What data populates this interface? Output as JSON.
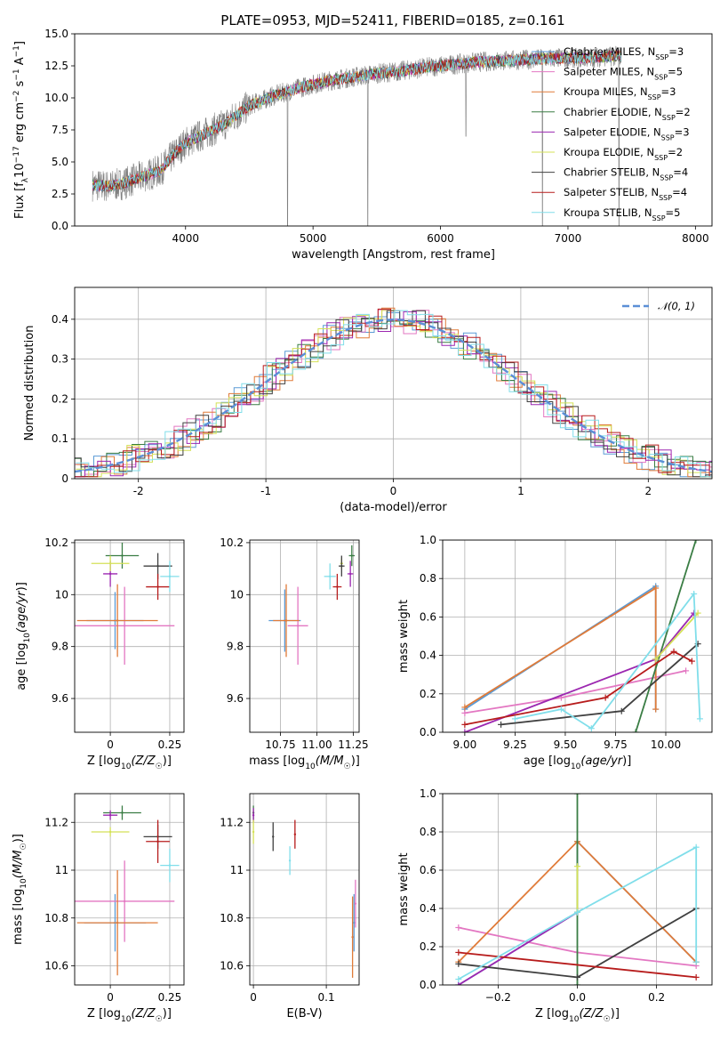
{
  "title": "PLATE=0953, MJD=52411, FIBERID=0185, z=0.161",
  "chart_data": [
    {
      "id": "spectrum",
      "type": "line",
      "xlabel": "wavelength [Angstrom, rest frame]",
      "ylabel": "Flux [f_λ10^{-17} erg cm^{-2} s^{-1} A^{-1}]",
      "xlim": [
        3130,
        8130
      ],
      "ylim": [
        0,
        15
      ],
      "xticks": [
        "4000",
        "5000",
        "6000",
        "7000",
        "8000"
      ],
      "yticks": [
        "0.0",
        "2.5",
        "5.0",
        "7.5",
        "10.0",
        "12.5",
        "15.0"
      ],
      "observed": {
        "color": "#808080",
        "anchors": [
          [
            3270,
            3.2
          ],
          [
            3400,
            3.1
          ],
          [
            3500,
            3.3
          ],
          [
            3650,
            3.8
          ],
          [
            3800,
            4.3
          ],
          [
            3900,
            5.5
          ],
          [
            4000,
            6.5
          ],
          [
            4150,
            7.2
          ],
          [
            4300,
            7.9
          ],
          [
            4500,
            9.4
          ],
          [
            4700,
            10.2
          ],
          [
            4900,
            10.8
          ],
          [
            5100,
            11.3
          ],
          [
            5300,
            11.6
          ],
          [
            5500,
            11.9
          ],
          [
            5700,
            12.1
          ],
          [
            5900,
            12.4
          ],
          [
            6100,
            12.6
          ],
          [
            6300,
            12.8
          ],
          [
            6500,
            12.9
          ],
          [
            6700,
            13.0
          ],
          [
            6900,
            13.1
          ],
          [
            7100,
            13.1
          ],
          [
            7300,
            13.2
          ],
          [
            7420,
            13.3
          ]
        ],
        "deep_lines": [
          [
            4800,
            0.0
          ],
          [
            5430,
            0.0
          ],
          [
            6200,
            7.0
          ],
          [
            6800,
            0.0
          ],
          [
            7400,
            0.0
          ]
        ],
        "start": 3270,
        "end": 7420
      },
      "legend": [
        {
          "label": "Chabrier MILES, N_{SSP}=3",
          "color": "#5b9bd5"
        },
        {
          "label": "Salpeter MILES, N_{SSP}=5",
          "color": "#e377c2"
        },
        {
          "label": "Kroupa MILES, N_{SSP}=3",
          "color": "#e07b39"
        },
        {
          "label": "Chabrier ELODIE, N_{SSP}=2",
          "color": "#3a7d44"
        },
        {
          "label": "Salpeter ELODIE, N_{SSP}=3",
          "color": "#9c27b0"
        },
        {
          "label": "Kroupa ELODIE, N_{SSP}=2",
          "color": "#d4e157"
        },
        {
          "label": "Chabrier STELIB, N_{SSP}=4",
          "color": "#404040"
        },
        {
          "label": "Salpeter STELIB, N_{SSP}=4",
          "color": "#b71c1c"
        },
        {
          "label": "Kroupa STELIB, N_{SSP}=5",
          "color": "#80deea"
        }
      ]
    },
    {
      "id": "residuals",
      "type": "line",
      "xlabel": "(data-model)/error",
      "ylabel": "Normed distribution",
      "xlim": [
        -2.5,
        2.5
      ],
      "ylim": [
        0,
        0.48
      ],
      "xticks": [
        -2,
        -1,
        0,
        1,
        2
      ],
      "yticks": [
        0.0,
        0.1,
        0.2,
        0.3,
        0.4
      ],
      "gaussian": {
        "label": "𝒩(0, 1)",
        "color": "#5b8fd6"
      },
      "bin_width": 0.1,
      "hist_colors": [
        "#5b9bd5",
        "#e377c2",
        "#e07b39",
        "#3a7d44",
        "#9c27b0",
        "#d4e157",
        "#404040",
        "#b71c1c",
        "#80deea"
      ]
    },
    {
      "id": "age_vs_Z",
      "type": "scatter",
      "xlabel": "Z [log10(Z/Z☉)]",
      "ylabel": "age  [log10(age/yr)]",
      "xlim": [
        -0.15,
        0.31
      ],
      "ylim": [
        9.47,
        10.21
      ],
      "xticks": [
        0.0,
        0.25
      ],
      "yticks": [
        9.6,
        9.8,
        10.0,
        10.2
      ],
      "points": [
        {
          "color": "#5b9bd5",
          "x": 0.02,
          "y": 9.9,
          "xerr": 0.12,
          "yerr": 0.11
        },
        {
          "color": "#e377c2",
          "x": 0.06,
          "y": 9.88,
          "xerr": 0.21,
          "yerr": 0.15
        },
        {
          "color": "#e07b39",
          "x": 0.03,
          "y": 9.9,
          "xerr": 0.17,
          "yerr": 0.14
        },
        {
          "color": "#3a7d44",
          "x": 0.05,
          "y": 10.15,
          "xerr": 0.07,
          "yerr": 0.05
        },
        {
          "color": "#9c27b0",
          "x": 0.0,
          "y": 10.08,
          "xerr": 0.03,
          "yerr": 0.05
        },
        {
          "color": "#d4e157",
          "x": 0.0,
          "y": 10.12,
          "xerr": 0.08,
          "yerr": 0.03
        },
        {
          "color": "#404040",
          "x": 0.2,
          "y": 10.11,
          "xerr": 0.06,
          "yerr": 0.05
        },
        {
          "color": "#b71c1c",
          "x": 0.2,
          "y": 10.03,
          "xerr": 0.05,
          "yerr": 0.05
        },
        {
          "color": "#80deea",
          "x": 0.25,
          "y": 10.07,
          "xerr": 0.04,
          "yerr": 0.06
        }
      ]
    },
    {
      "id": "age_vs_mass",
      "type": "scatter",
      "xlabel": "mass [log10(M/M☉)]",
      "ylabel": "",
      "xlim": [
        10.54,
        11.29
      ],
      "ylim": [
        9.47,
        10.21
      ],
      "xticks": [
        "10.75",
        "11.00",
        "11.25"
      ],
      "yticks": [
        9.6,
        9.8,
        10.0,
        10.2
      ],
      "points": [
        {
          "color": "#5b9bd5",
          "x": 10.78,
          "y": 9.9,
          "xerr": 0.11,
          "yerr": 0.12
        },
        {
          "color": "#e377c2",
          "x": 10.87,
          "y": 9.88,
          "xerr": 0.07,
          "yerr": 0.15
        },
        {
          "color": "#e07b39",
          "x": 10.79,
          "y": 9.9,
          "xerr": 0.09,
          "yerr": 0.14
        },
        {
          "color": "#3a7d44",
          "x": 11.24,
          "y": 10.15,
          "xerr": 0.02,
          "yerr": 0.04
        },
        {
          "color": "#9c27b0",
          "x": 11.23,
          "y": 10.08,
          "xerr": 0.02,
          "yerr": 0.05
        },
        {
          "color": "#d4e157",
          "x": 11.17,
          "y": 10.12,
          "xerr": 0.01,
          "yerr": 0.02
        },
        {
          "color": "#404040",
          "x": 11.17,
          "y": 10.11,
          "xerr": 0.02,
          "yerr": 0.04
        },
        {
          "color": "#b71c1c",
          "x": 11.14,
          "y": 10.03,
          "xerr": 0.03,
          "yerr": 0.05
        },
        {
          "color": "#80deea",
          "x": 11.09,
          "y": 10.07,
          "xerr": 0.04,
          "yerr": 0.05
        }
      ]
    },
    {
      "id": "weight_vs_age",
      "type": "line",
      "xlabel": "age  [log10(age/yr)]",
      "ylabel": "mass weight",
      "xlim": [
        8.89,
        10.23
      ],
      "ylim": [
        0,
        1.0
      ],
      "xticks": [
        "9.00",
        "9.25",
        "9.50",
        "9.75",
        "10.00"
      ],
      "yticks": [
        "0.0",
        "0.2",
        "0.4",
        "0.6",
        "0.8",
        "1.0"
      ],
      "series": [
        {
          "color": "#5b9bd5",
          "points": [
            [
              9.0,
              0.12
            ],
            [
              9.95,
              0.76
            ],
            [
              9.95,
              0.12
            ]
          ]
        },
        {
          "color": "#e377c2",
          "points": [
            [
              9.0,
              0.1
            ],
            [
              9.48,
              0.18
            ],
            [
              10.1,
              0.32
            ]
          ]
        },
        {
          "color": "#e07b39",
          "points": [
            [
              9.0,
              0.13
            ],
            [
              9.95,
              0.75
            ],
            [
              9.95,
              0.12
            ]
          ]
        },
        {
          "color": "#3a7d44",
          "points": [
            [
              9.85,
              0.0
            ],
            [
              10.15,
              1.0
            ]
          ]
        },
        {
          "color": "#9c27b0",
          "points": [
            [
              9.0,
              0.0
            ],
            [
              9.95,
              0.38
            ],
            [
              10.14,
              0.62
            ]
          ]
        },
        {
          "color": "#d4e157",
          "points": [
            [
              9.95,
              0.38
            ],
            [
              10.16,
              0.62
            ]
          ]
        },
        {
          "color": "#404040",
          "points": [
            [
              9.18,
              0.04
            ],
            [
              9.78,
              0.11
            ],
            [
              10.16,
              0.46
            ]
          ]
        },
        {
          "color": "#b71c1c",
          "points": [
            [
              9.0,
              0.04
            ],
            [
              9.7,
              0.18
            ],
            [
              10.04,
              0.42
            ],
            [
              10.13,
              0.37
            ]
          ]
        },
        {
          "color": "#80deea",
          "points": [
            [
              9.25,
              0.07
            ],
            [
              9.48,
              0.12
            ],
            [
              9.63,
              0.02
            ],
            [
              10.14,
              0.72
            ],
            [
              10.17,
              0.07
            ]
          ]
        }
      ]
    },
    {
      "id": "mass_vs_Z",
      "type": "scatter",
      "xlabel": "Z [log10(Z/Z☉)]",
      "ylabel": "mass [log10(M/M☉)]",
      "xlim": [
        -0.15,
        0.31
      ],
      "ylim": [
        10.52,
        11.32
      ],
      "xticks": [
        0.0,
        0.25
      ],
      "yticks": [
        10.6,
        10.8,
        11.0,
        11.2
      ],
      "points": [
        {
          "color": "#5b9bd5",
          "x": 0.02,
          "y": 10.78,
          "xerr": 0.13,
          "yerr": 0.12
        },
        {
          "color": "#e377c2",
          "x": 0.06,
          "y": 10.87,
          "xerr": 0.21,
          "yerr": 0.17
        },
        {
          "color": "#e07b39",
          "x": 0.03,
          "y": 10.78,
          "xerr": 0.17,
          "yerr": 0.22
        },
        {
          "color": "#3a7d44",
          "x": 0.05,
          "y": 11.24,
          "xerr": 0.08,
          "yerr": 0.03
        },
        {
          "color": "#9c27b0",
          "x": 0.0,
          "y": 11.23,
          "xerr": 0.03,
          "yerr": 0.02
        },
        {
          "color": "#d4e157",
          "x": 0.0,
          "y": 11.16,
          "xerr": 0.08,
          "yerr": 0.02
        },
        {
          "color": "#404040",
          "x": 0.2,
          "y": 11.14,
          "xerr": 0.06,
          "yerr": 0.05
        },
        {
          "color": "#b71c1c",
          "x": 0.2,
          "y": 11.12,
          "xerr": 0.05,
          "yerr": 0.09
        },
        {
          "color": "#80deea",
          "x": 0.25,
          "y": 11.02,
          "xerr": 0.04,
          "yerr": 0.07
        }
      ]
    },
    {
      "id": "mass_vs_ebv",
      "type": "scatter",
      "xlabel": "E(B-V)",
      "ylabel": "",
      "xlim": [
        -0.005,
        0.145
      ],
      "ylim": [
        10.52,
        11.32
      ],
      "xticks": [
        0.0,
        0.1
      ],
      "yticks": [
        10.6,
        10.8,
        11.0,
        11.2
      ],
      "points": [
        {
          "color": "#5b9bd5",
          "x": 0.138,
          "y": 10.78,
          "yerr": 0.12
        },
        {
          "color": "#e377c2",
          "x": 0.14,
          "y": 10.86,
          "yerr": 0.1
        },
        {
          "color": "#e07b39",
          "x": 0.136,
          "y": 10.72,
          "yerr": 0.17
        },
        {
          "color": "#3a7d44",
          "x": 0.0,
          "y": 11.24,
          "yerr": 0.03
        },
        {
          "color": "#9c27b0",
          "x": 0.0,
          "y": 11.23,
          "yerr": 0.03
        },
        {
          "color": "#d4e157",
          "x": 0.0,
          "y": 11.16,
          "yerr": 0.05
        },
        {
          "color": "#404040",
          "x": 0.027,
          "y": 11.14,
          "yerr": 0.06
        },
        {
          "color": "#b71c1c",
          "x": 0.057,
          "y": 11.15,
          "yerr": 0.06
        },
        {
          "color": "#80deea",
          "x": 0.05,
          "y": 11.04,
          "yerr": 0.06
        }
      ]
    },
    {
      "id": "weight_vs_Z",
      "type": "line",
      "xlabel": "Z [log10(Z/Z☉)]",
      "ylabel": "mass weight",
      "xlim": [
        -0.34,
        0.34
      ],
      "ylim": [
        0,
        1.0
      ],
      "xticks": [
        "−0.2",
        "0.0",
        "0.2"
      ],
      "yticks": [
        "0.0",
        "0.2",
        "0.4",
        "0.6",
        "0.8",
        "1.0"
      ],
      "series": [
        {
          "color": "#5b9bd5",
          "points": [
            [
              -0.3,
              0.0
            ],
            [
              0.0,
              0.38
            ],
            [
              0.0,
              0.75
            ],
            [
              0.3,
              0.12
            ]
          ]
        },
        {
          "color": "#e377c2",
          "points": [
            [
              -0.3,
              0.3
            ],
            [
              0.0,
              0.17
            ],
            [
              0.3,
              0.1
            ]
          ]
        },
        {
          "color": "#e07b39",
          "points": [
            [
              -0.3,
              0.12
            ],
            [
              0.0,
              0.75
            ],
            [
              0.3,
              0.12
            ]
          ]
        },
        {
          "color": "#3a7d44",
          "points": [
            [
              0.0,
              0.0
            ],
            [
              0.0,
              1.0
            ]
          ]
        },
        {
          "color": "#9c27b0",
          "points": [
            [
              -0.3,
              0.0
            ],
            [
              0.0,
              0.38
            ]
          ]
        },
        {
          "color": "#d4e157",
          "points": [
            [
              0.0,
              0.38
            ],
            [
              0.0,
              0.62
            ]
          ]
        },
        {
          "color": "#404040",
          "points": [
            [
              -0.3,
              0.11
            ],
            [
              0.0,
              0.04
            ],
            [
              0.3,
              0.4
            ]
          ]
        },
        {
          "color": "#b71c1c",
          "points": [
            [
              -0.3,
              0.17
            ],
            [
              0.3,
              0.04
            ]
          ]
        },
        {
          "color": "#80deea",
          "points": [
            [
              -0.3,
              0.03
            ],
            [
              0.0,
              0.38
            ],
            [
              0.3,
              0.72
            ],
            [
              0.3,
              0.12
            ]
          ]
        }
      ]
    }
  ]
}
